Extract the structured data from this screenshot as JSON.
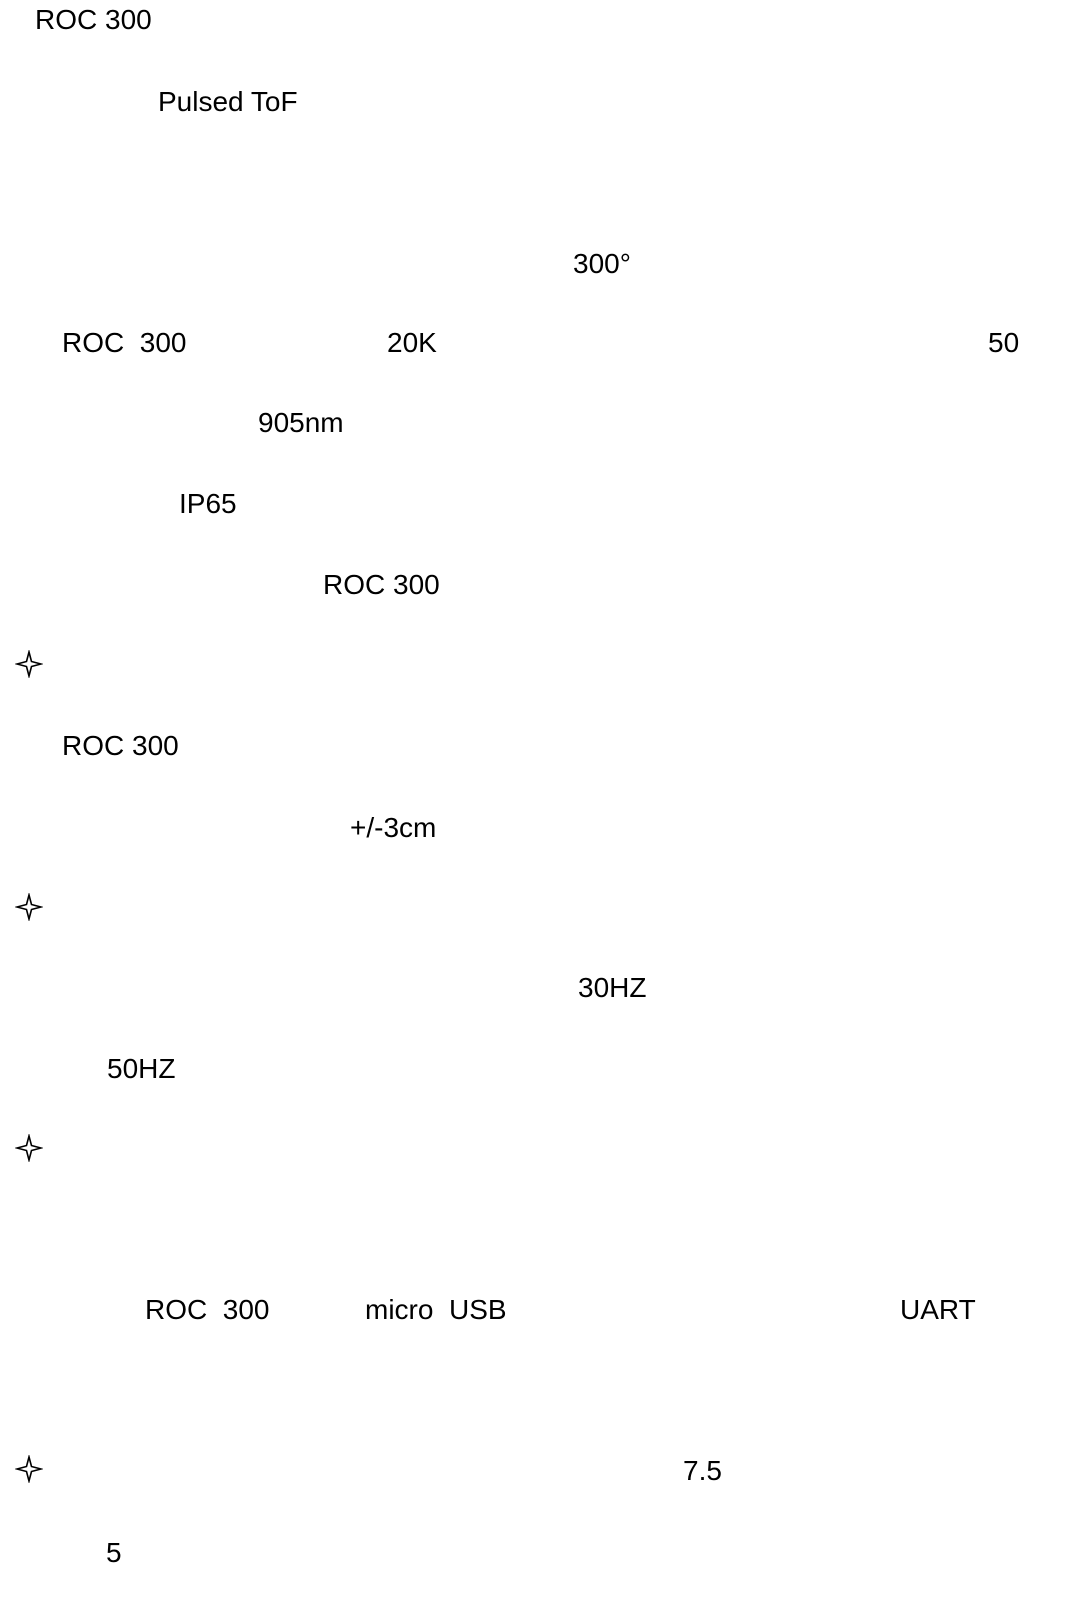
{
  "document": {
    "line_01": "ROC 300",
    "line_02": "Pulsed ToF",
    "line_03": "300°",
    "line_04a": "ROC  300",
    "line_04b": "20K",
    "line_04c": "50",
    "line_05": "905nm",
    "line_06": "IP65",
    "line_07": "ROC 300",
    "line_08": "ROC 300",
    "line_09": "+/-3cm",
    "line_10": "30HZ",
    "line_11": "50HZ",
    "line_12a": "ROC  300",
    "line_12b": "micro  USB",
    "line_12c": "UART",
    "line_13": "7.5",
    "line_14": "5"
  },
  "icons": {
    "bullet": "four-point-star-outline-icon"
  }
}
